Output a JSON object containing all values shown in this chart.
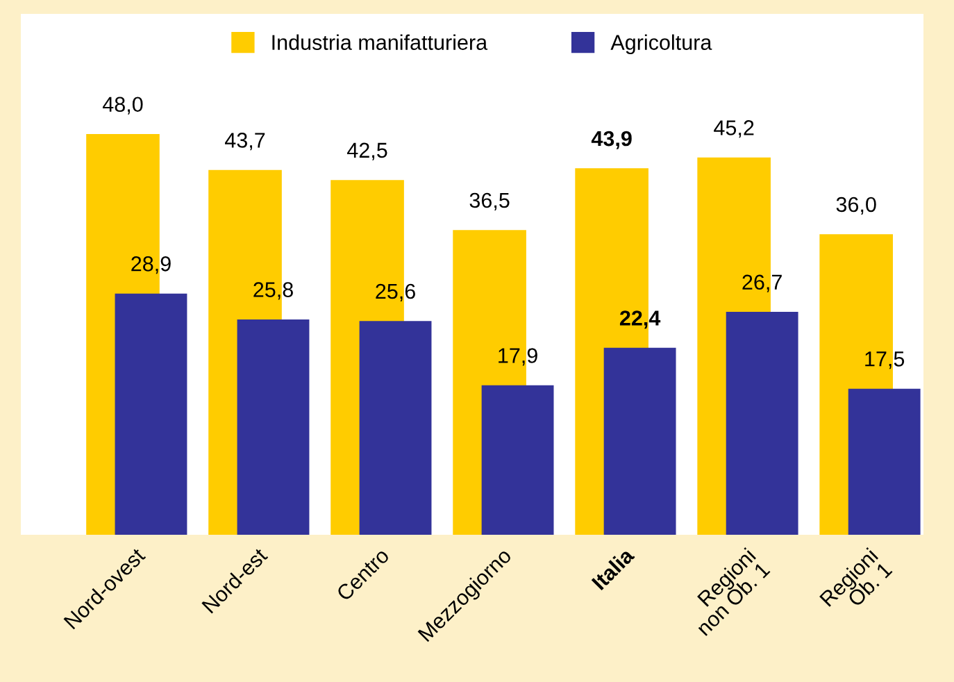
{
  "chart_data": {
    "type": "bar",
    "categories": [
      "Nord-ovest",
      "Nord-est",
      "Centro",
      "Mezzogiorno",
      "Italia",
      "Regioni\nnon Ob. 1",
      "Regioni\nOb. 1"
    ],
    "series": [
      {
        "name": "Industria manifatturiera",
        "color": "#ffcc00",
        "values": [
          48.0,
          43.7,
          42.5,
          36.5,
          43.9,
          45.2,
          36.0
        ],
        "value_labels": [
          "48,0",
          "43,7",
          "42,5",
          "36,5",
          "43,9",
          "45,2",
          "36,0"
        ]
      },
      {
        "name": "Agricoltura",
        "color": "#333399",
        "values": [
          28.9,
          25.8,
          25.6,
          17.9,
          22.4,
          26.7,
          17.5
        ],
        "value_labels": [
          "28,9",
          "25,8",
          "25,6",
          "17,9",
          "22,4",
          "26,7",
          "17,5"
        ]
      }
    ],
    "legend": "top",
    "grid": false
  }
}
